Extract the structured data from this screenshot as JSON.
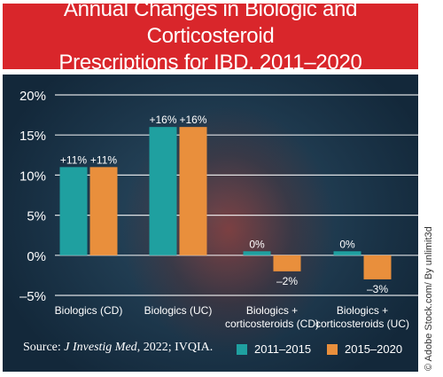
{
  "title_line1": "Annual Changes in Biologic and Corticosteroid",
  "title_line2": "Prescriptions for IBD, 2011–2020",
  "credit": "© Adobe Stock.com/ By unlimit3d",
  "source": {
    "prefix": "Source: ",
    "journal": "J Investig Med",
    "suffix": ", 2022; IVQIA."
  },
  "colors": {
    "series_2011_2015": "#1fa0a0",
    "series_2015_2020": "#e98f3c",
    "title_bg": "#d9262b"
  },
  "chart_data": {
    "type": "bar",
    "title": "Annual Changes in Biologic and Corticosteroid Prescriptions for IBD, 2011–2020",
    "categories": [
      "Biologics (CD)",
      "Biologics (UC)",
      "Biologics + corticosteroids (CD)",
      "Biologics + corticosteroids (UC)"
    ],
    "series": [
      {
        "name": "2011–2015",
        "values": [
          11,
          16,
          0.5,
          0.5
        ],
        "labels": [
          "+11%",
          "+16%",
          "0%",
          "0%"
        ]
      },
      {
        "name": "2015–2020",
        "values": [
          11,
          16,
          -2,
          -3
        ],
        "labels": [
          "+11%",
          "+16%",
          "–2%",
          "–3%"
        ]
      }
    ],
    "yticks": [
      "20%",
      "15%",
      "10%",
      "5%",
      "0%",
      "–5%"
    ],
    "ylim": [
      -5,
      20
    ],
    "grid": true,
    "legend": "bottom-right"
  }
}
